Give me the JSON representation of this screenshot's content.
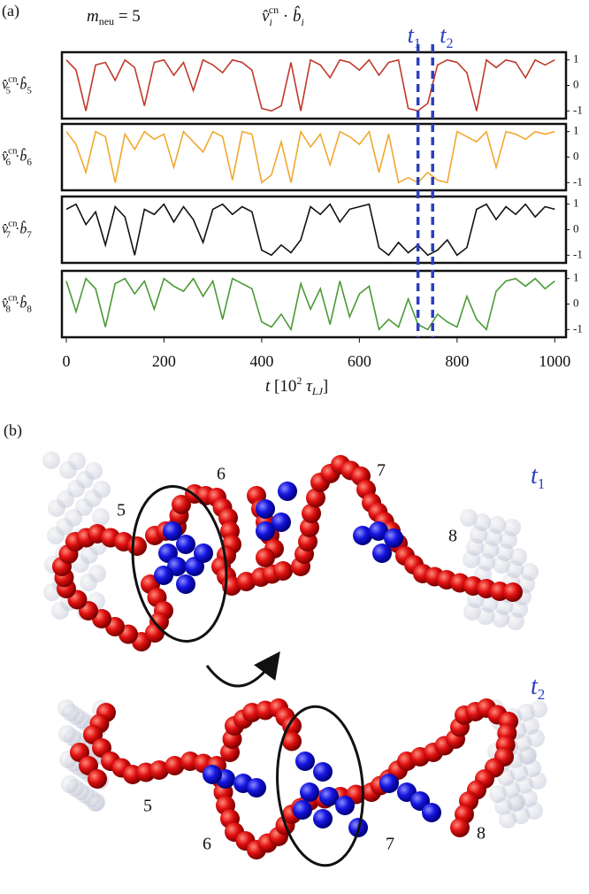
{
  "panel_a_label": "(a)",
  "chart_data": {
    "type": "line",
    "m_label": {
      "base": "m",
      "sub": "neu",
      "rest": " = 5"
    },
    "title": {
      "vec1": "v̂",
      "sub1": "i",
      "sup": "cn",
      "dot": " · ",
      "vec2": "b̂",
      "sub2": "i"
    },
    "xlabel": {
      "var": "t",
      "unit_base": " [10",
      "unit_exp": "2",
      "tau": " τ",
      "tau_sub": "LJ",
      "close": "]"
    },
    "x": [
      0,
      20,
      40,
      60,
      80,
      100,
      120,
      140,
      160,
      180,
      200,
      220,
      240,
      260,
      280,
      300,
      320,
      340,
      360,
      380,
      400,
      420,
      440,
      460,
      480,
      500,
      520,
      540,
      560,
      580,
      600,
      620,
      640,
      660,
      680,
      700,
      720,
      740,
      760,
      780,
      800,
      820,
      840,
      860,
      880,
      900,
      920,
      940,
      960,
      980,
      1000
    ],
    "xlim": [
      -9,
      1023
    ],
    "xticks": [
      0,
      200,
      400,
      600,
      800,
      1000
    ],
    "ylim": [
      -1.3,
      1.3
    ],
    "yticks": [
      1,
      0,
      -1
    ],
    "annotations": [
      {
        "x": 720,
        "label": "t",
        "sub": "1"
      },
      {
        "x": 750,
        "label": "t",
        "sub": "2"
      }
    ],
    "annotation_color": "#2b3fbf",
    "series": [
      {
        "color": "#c0392b",
        "ylabel": {
          "vec1": "v̂",
          "sup": "cn",
          "sub": "5",
          "dot": "·",
          "vec2": "b̂"
        },
        "values": [
          1,
          0.6,
          -1,
          0.8,
          0.9,
          0.2,
          1,
          0.7,
          -0.8,
          0.9,
          1,
          0.4,
          0.9,
          -0.2,
          1,
          0.8,
          0.5,
          1,
          0.9,
          0.6,
          -0.9,
          -1,
          -0.8,
          0.9,
          -1,
          1,
          0.8,
          0.3,
          1,
          0.9,
          0.6,
          1,
          0.4,
          0.9,
          1,
          -0.9,
          -1,
          -0.7,
          0.8,
          1,
          0.9,
          0.5,
          -1,
          1,
          0.7,
          1,
          0.9,
          0.3,
          1,
          0.8,
          1
        ]
      },
      {
        "color": "#f0a830",
        "ylabel": {
          "vec1": "v̂",
          "sup": "cn",
          "sub": "6",
          "dot": "·",
          "vec2": "b̂"
        },
        "values": [
          1,
          0.5,
          -0.6,
          1,
          0.8,
          -1,
          0.9,
          0.3,
          1,
          0.7,
          0.9,
          -0.4,
          1,
          0.6,
          0.2,
          1,
          0.8,
          -0.9,
          1,
          0.9,
          -1,
          -0.7,
          0.6,
          -1,
          1,
          0.4,
          0.9,
          -0.3,
          1,
          0.8,
          0.5,
          1,
          -0.6,
          0.9,
          -1,
          -0.8,
          -1,
          -0.6,
          -0.9,
          -1,
          1,
          0.8,
          0.6,
          1,
          -0.4,
          1,
          0.9,
          0.7,
          1,
          0.9,
          1
        ]
      },
      {
        "color": "#111111",
        "ylabel": {
          "vec1": "v̂",
          "sup": "cn",
          "sub": "7",
          "dot": "·",
          "vec2": "b̂"
        },
        "values": [
          0.8,
          1,
          0.2,
          0.7,
          -0.6,
          0.9,
          0.5,
          -1,
          0.8,
          0.6,
          1,
          0.3,
          0.9,
          0.4,
          -0.5,
          0.8,
          1,
          0.6,
          0.9,
          0.7,
          -0.8,
          -1,
          -0.6,
          -0.9,
          -0.4,
          0.9,
          0.6,
          1,
          0.3,
          0.8,
          0.9,
          1,
          -0.7,
          -1,
          -0.5,
          -0.9,
          -0.6,
          -1,
          -0.8,
          -0.4,
          -1,
          -0.7,
          0.8,
          1,
          0.4,
          0.9,
          0.6,
          1,
          0.5,
          0.9,
          0.8
        ]
      },
      {
        "color": "#4a9a35",
        "ylabel": {
          "vec1": "v̂",
          "sup": "cn",
          "sub": "8",
          "dot": "·",
          "vec2": "b̂"
        },
        "values": [
          0.9,
          -0.3,
          1,
          0.6,
          -0.9,
          0.8,
          1,
          0.4,
          0.9,
          -0.2,
          1,
          0.7,
          0.5,
          1,
          0.3,
          0.9,
          -0.6,
          1,
          0.8,
          0.6,
          -0.7,
          -0.9,
          -0.4,
          -1,
          0.8,
          -0.2,
          0.6,
          -0.8,
          0.9,
          -0.5,
          0.4,
          0.7,
          -1,
          -0.6,
          -0.9,
          0.2,
          -0.8,
          -1,
          -0.4,
          -0.7,
          -0.9,
          0.3,
          -0.6,
          -1,
          0.5,
          0.9,
          1,
          0.7,
          1,
          0.6,
          0.9
        ]
      }
    ]
  },
  "panel_b": {
    "label": "(b)",
    "snapshots": [
      {
        "time": "t",
        "time_sub": "1",
        "segments": [
          "5",
          "6",
          "7",
          "8"
        ]
      },
      {
        "time": "t",
        "time_sub": "2",
        "segments": [
          "5",
          "6",
          "7",
          "8"
        ]
      }
    ]
  }
}
